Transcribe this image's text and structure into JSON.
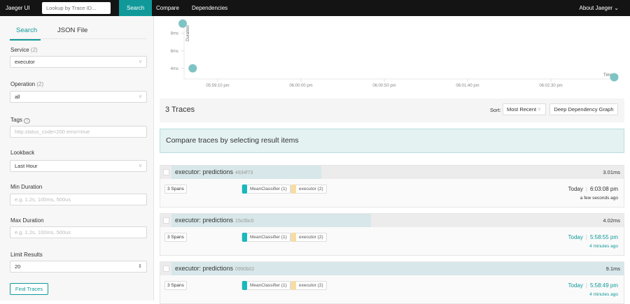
{
  "nav": {
    "brand": "Jaeger UI",
    "lookup_placeholder": "Lookup by Trace ID...",
    "tabs": [
      "Search",
      "Compare",
      "Dependencies"
    ],
    "active_tab": "Search",
    "about": "About Jaeger ⌄"
  },
  "sidebar": {
    "tabs": [
      "Search",
      "JSON File"
    ],
    "service": {
      "label": "Service",
      "count": "(2)",
      "value": "executor"
    },
    "operation": {
      "label": "Operation",
      "count": "(2)",
      "value": "all"
    },
    "tags": {
      "label": "Tags",
      "help": "?",
      "placeholder": "http.status_code=200 error=true"
    },
    "lookback": {
      "label": "Lookback",
      "value": "Last Hour"
    },
    "min_duration": {
      "label": "Min Duration",
      "placeholder": "e.g. 1.2s, 100ms, 500us"
    },
    "max_duration": {
      "label": "Max Duration",
      "placeholder": "e.g. 1.2s, 100ms, 500us"
    },
    "limit": {
      "label": "Limit Results",
      "value": "20"
    },
    "find_button": "Find Traces"
  },
  "chart_data": {
    "type": "scatter",
    "ylabel": "Duration",
    "xlabel": "Time",
    "y_ticks": [
      "4ms",
      "6ms",
      "8ms"
    ],
    "x_ticks": [
      "05:59:10 pm",
      "06:00:00 pm",
      "06:00:50 pm",
      "06:01:40 pm",
      "06:02:30 pm"
    ],
    "points": [
      {
        "time": "05:58:49 pm",
        "duration_ms": 9.1
      },
      {
        "time": "05:58:55 pm",
        "duration_ms": 4.02
      },
      {
        "time": "06:03:08 pm",
        "duration_ms": 3.01
      }
    ],
    "color": "#7fc4c4"
  },
  "results": {
    "count_label": "3 Traces",
    "sort_label": "Sort:",
    "sort_value": "Most Recent",
    "ddg_button": "Deep Dependency Graph",
    "compare_text": "Compare traces by selecting result items",
    "traces": [
      {
        "name": "executor: predictions",
        "id": "4834f73",
        "duration": "3.01ms",
        "duration_ms": 3.01,
        "spans": "3 Spans",
        "services": [
          {
            "name": "MeanClassifier (1)",
            "color": "#17b8be"
          },
          {
            "name": "executor (2)",
            "color": "#f8dca1"
          }
        ],
        "day": "Today",
        "time": "6:03:08 pm",
        "ago": "a few seconds ago"
      },
      {
        "name": "executor: predictions",
        "id": "15c0bc0",
        "duration": "4.02ms",
        "duration_ms": 4.02,
        "spans": "3 Spans",
        "services": [
          {
            "name": "MeanClassifier (1)",
            "color": "#17b8be"
          },
          {
            "name": "executor (2)",
            "color": "#f8dca1"
          }
        ],
        "day": "Today",
        "time": "5:58:55 pm",
        "ago": "4 minutes ago"
      },
      {
        "name": "executor: predictions",
        "id": "0990b02",
        "duration": "9.1ms",
        "duration_ms": 9.1,
        "spans": "3 Spans",
        "services": [
          {
            "name": "MeanClassifier (1)",
            "color": "#17b8be"
          },
          {
            "name": "executor (2)",
            "color": "#f8dca1"
          }
        ],
        "day": "Today",
        "time": "5:58:49 pm",
        "ago": "4 minutes ago"
      }
    ]
  }
}
